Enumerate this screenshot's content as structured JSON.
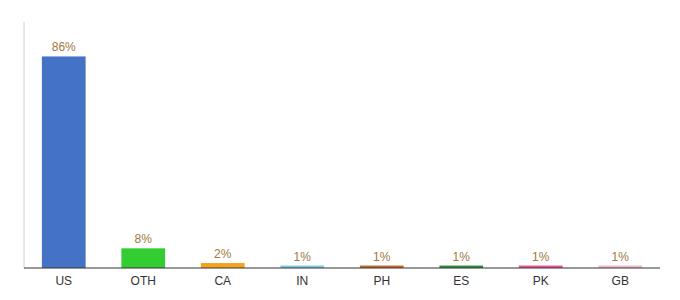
{
  "chart_data": {
    "type": "bar",
    "categories": [
      "US",
      "OTH",
      "CA",
      "IN",
      "PH",
      "ES",
      "PK",
      "GB"
    ],
    "values": [
      86,
      8,
      2,
      1,
      1,
      1,
      1,
      1
    ],
    "value_labels": [
      "86%",
      "8%",
      "2%",
      "1%",
      "1%",
      "1%",
      "1%",
      "1%"
    ],
    "colors": [
      "#4472c4",
      "#33cc33",
      "#f4a21a",
      "#7ec8e3",
      "#c0692a",
      "#2d8e3e",
      "#e8538f",
      "#f4b8c8"
    ],
    "ylim": [
      0,
      100
    ],
    "data_labels": true,
    "tick_labels": "x",
    "grid": false
  }
}
